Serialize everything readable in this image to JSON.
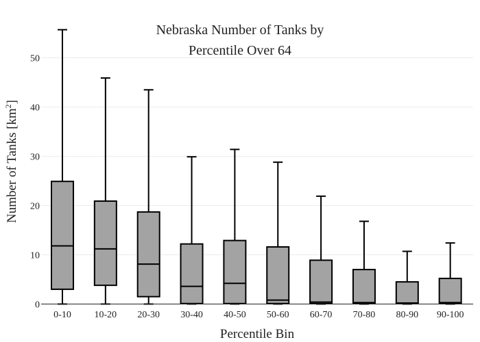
{
  "chart_data": {
    "type": "box",
    "title_lines": [
      "Nebraska Number of Tanks by",
      "Percentile Over 64"
    ],
    "xlabel": "Percentile Bin",
    "ylabel_main": "Number of Tanks  [km",
    "ylabel_sup": "2",
    "ylabel_end": "]",
    "ylim": [
      0,
      58
    ],
    "yticks": [
      0,
      10,
      20,
      30,
      40,
      50
    ],
    "grid": true,
    "categories": [
      "0-10",
      "10-20",
      "20-30",
      "30-40",
      "40-50",
      "50-60",
      "60-70",
      "70-80",
      "80-90",
      "90-100"
    ],
    "boxes": [
      {
        "min": 0,
        "q1": 3.0,
        "median": 11.8,
        "q3": 24.9,
        "max": 55.7
      },
      {
        "min": 0,
        "q1": 3.8,
        "median": 11.2,
        "q3": 20.9,
        "max": 45.9
      },
      {
        "min": 0,
        "q1": 1.5,
        "median": 8.1,
        "q3": 18.7,
        "max": 43.5
      },
      {
        "min": 0,
        "q1": 0.1,
        "median": 3.6,
        "q3": 12.2,
        "max": 29.9
      },
      {
        "min": 0,
        "q1": 0.1,
        "median": 4.2,
        "q3": 12.9,
        "max": 31.4
      },
      {
        "min": 0,
        "q1": 0.1,
        "median": 0.8,
        "q3": 11.6,
        "max": 28.8
      },
      {
        "min": 0,
        "q1": 0.1,
        "median": 0.4,
        "q3": 8.9,
        "max": 21.9
      },
      {
        "min": 0,
        "q1": 0.1,
        "median": 0.3,
        "q3": 7.0,
        "max": 16.8
      },
      {
        "min": 0,
        "q1": 0.1,
        "median": 0.2,
        "q3": 4.5,
        "max": 10.7
      },
      {
        "min": 0,
        "q1": 0.1,
        "median": 0.3,
        "q3": 5.2,
        "max": 12.4
      }
    ],
    "colors": {
      "box_fill": "#a3a3a3",
      "outline": "#000000",
      "grid": "#ececec"
    }
  }
}
